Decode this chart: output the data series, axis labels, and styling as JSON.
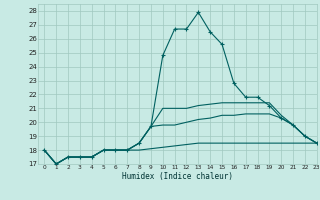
{
  "xlabel": "Humidex (Indice chaleur)",
  "xlim": [
    -0.5,
    23
  ],
  "ylim": [
    17,
    28.5
  ],
  "yticks": [
    17,
    18,
    19,
    20,
    21,
    22,
    23,
    24,
    25,
    26,
    27,
    28
  ],
  "xticks": [
    0,
    1,
    2,
    3,
    4,
    5,
    6,
    7,
    8,
    9,
    10,
    11,
    12,
    13,
    14,
    15,
    16,
    17,
    18,
    19,
    20,
    21,
    22,
    23
  ],
  "bg_color": "#c8eae4",
  "grid_color": "#a0c8c0",
  "line_color": "#006060",
  "lines": [
    {
      "x": [
        0,
        1,
        2,
        3,
        4,
        5,
        6,
        7,
        8,
        9,
        10,
        11,
        12,
        13,
        14,
        15,
        16,
        17,
        18,
        19,
        20,
        21,
        22,
        23
      ],
      "y": [
        18,
        17,
        17.5,
        17.5,
        17.5,
        18,
        18,
        18,
        18.5,
        19.7,
        24.8,
        26.7,
        26.7,
        27.9,
        26.5,
        25.6,
        22.8,
        21.8,
        21.8,
        21.2,
        20.3,
        19.8,
        19.0,
        18.5
      ],
      "marker": true
    },
    {
      "x": [
        0,
        1,
        2,
        3,
        4,
        5,
        6,
        7,
        8,
        9,
        10,
        11,
        12,
        13,
        14,
        15,
        16,
        17,
        18,
        19,
        20,
        21,
        22,
        23
      ],
      "y": [
        18,
        17,
        17.5,
        17.5,
        17.5,
        18,
        18,
        18,
        18.5,
        19.7,
        21.0,
        21.0,
        21.0,
        21.2,
        21.3,
        21.4,
        21.4,
        21.4,
        21.4,
        21.4,
        20.5,
        19.8,
        19.0,
        18.5
      ],
      "marker": false
    },
    {
      "x": [
        0,
        1,
        2,
        3,
        4,
        5,
        6,
        7,
        8,
        9,
        10,
        11,
        12,
        13,
        14,
        15,
        16,
        17,
        18,
        19,
        20,
        21,
        22,
        23
      ],
      "y": [
        18,
        17,
        17.5,
        17.5,
        17.5,
        18,
        18,
        18,
        18.5,
        19.7,
        19.8,
        19.8,
        20.0,
        20.2,
        20.3,
        20.5,
        20.5,
        20.6,
        20.6,
        20.6,
        20.3,
        19.8,
        19.0,
        18.5
      ],
      "marker": false
    },
    {
      "x": [
        0,
        1,
        2,
        3,
        4,
        5,
        6,
        7,
        8,
        9,
        10,
        11,
        12,
        13,
        14,
        15,
        16,
        17,
        18,
        19,
        20,
        21,
        22,
        23
      ],
      "y": [
        18,
        17,
        17.5,
        17.5,
        17.5,
        18,
        18,
        18,
        18,
        18.1,
        18.2,
        18.3,
        18.4,
        18.5,
        18.5,
        18.5,
        18.5,
        18.5,
        18.5,
        18.5,
        18.5,
        18.5,
        18.5,
        18.5
      ],
      "marker": false
    }
  ]
}
